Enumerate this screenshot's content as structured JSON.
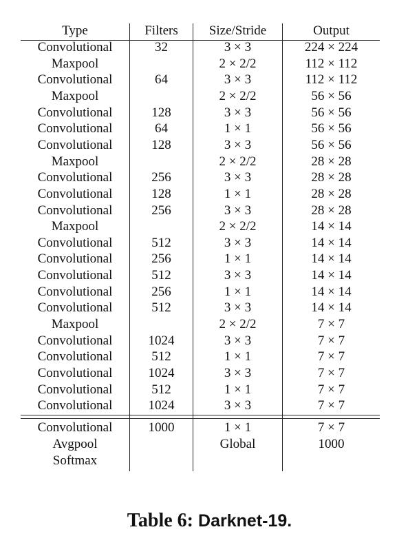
{
  "table": {
    "headers": {
      "type": "Type",
      "filters": "Filters",
      "size": "Size/Stride",
      "output": "Output"
    },
    "rows": [
      {
        "type": "Convolutional",
        "filters": "32",
        "size": "3 × 3",
        "output": "224 × 224"
      },
      {
        "type": "Maxpool",
        "filters": "",
        "size": "2 × 2/2",
        "output": "112 × 112"
      },
      {
        "type": "Convolutional",
        "filters": "64",
        "size": "3 × 3",
        "output": "112 × 112"
      },
      {
        "type": "Maxpool",
        "filters": "",
        "size": "2 × 2/2",
        "output": "56 × 56"
      },
      {
        "type": "Convolutional",
        "filters": "128",
        "size": "3 × 3",
        "output": "56 × 56"
      },
      {
        "type": "Convolutional",
        "filters": "64",
        "size": "1 × 1",
        "output": "56 × 56"
      },
      {
        "type": "Convolutional",
        "filters": "128",
        "size": "3 × 3",
        "output": "56 × 56"
      },
      {
        "type": "Maxpool",
        "filters": "",
        "size": "2 × 2/2",
        "output": "28 × 28"
      },
      {
        "type": "Convolutional",
        "filters": "256",
        "size": "3 × 3",
        "output": "28 × 28"
      },
      {
        "type": "Convolutional",
        "filters": "128",
        "size": "1 × 1",
        "output": "28 × 28"
      },
      {
        "type": "Convolutional",
        "filters": "256",
        "size": "3 × 3",
        "output": "28 × 28"
      },
      {
        "type": "Maxpool",
        "filters": "",
        "size": "2 × 2/2",
        "output": "14 × 14"
      },
      {
        "type": "Convolutional",
        "filters": "512",
        "size": "3 × 3",
        "output": "14 × 14"
      },
      {
        "type": "Convolutional",
        "filters": "256",
        "size": "1 × 1",
        "output": "14 × 14"
      },
      {
        "type": "Convolutional",
        "filters": "512",
        "size": "3 × 3",
        "output": "14 × 14"
      },
      {
        "type": "Convolutional",
        "filters": "256",
        "size": "1 × 1",
        "output": "14 × 14"
      },
      {
        "type": "Convolutional",
        "filters": "512",
        "size": "3 × 3",
        "output": "14 × 14"
      },
      {
        "type": "Maxpool",
        "filters": "",
        "size": "2 × 2/2",
        "output": "7 × 7"
      },
      {
        "type": "Convolutional",
        "filters": "1024",
        "size": "3 × 3",
        "output": "7 × 7"
      },
      {
        "type": "Convolutional",
        "filters": "512",
        "size": "1 × 1",
        "output": "7 × 7"
      },
      {
        "type": "Convolutional",
        "filters": "1024",
        "size": "3 × 3",
        "output": "7 × 7"
      },
      {
        "type": "Convolutional",
        "filters": "512",
        "size": "1 × 1",
        "output": "7 × 7"
      },
      {
        "type": "Convolutional",
        "filters": "1024",
        "size": "3 × 3",
        "output": "7 × 7"
      }
    ],
    "footer_rows": [
      {
        "type": "Convolutional",
        "filters": "1000",
        "size": "1 × 1",
        "output": "7 × 7"
      },
      {
        "type": "Avgpool",
        "filters": "",
        "size": "Global",
        "output": "1000"
      },
      {
        "type": "Softmax",
        "filters": "",
        "size": "",
        "output": ""
      }
    ]
  },
  "caption": {
    "label": "Table 6:",
    "name": "Darknet-19."
  }
}
